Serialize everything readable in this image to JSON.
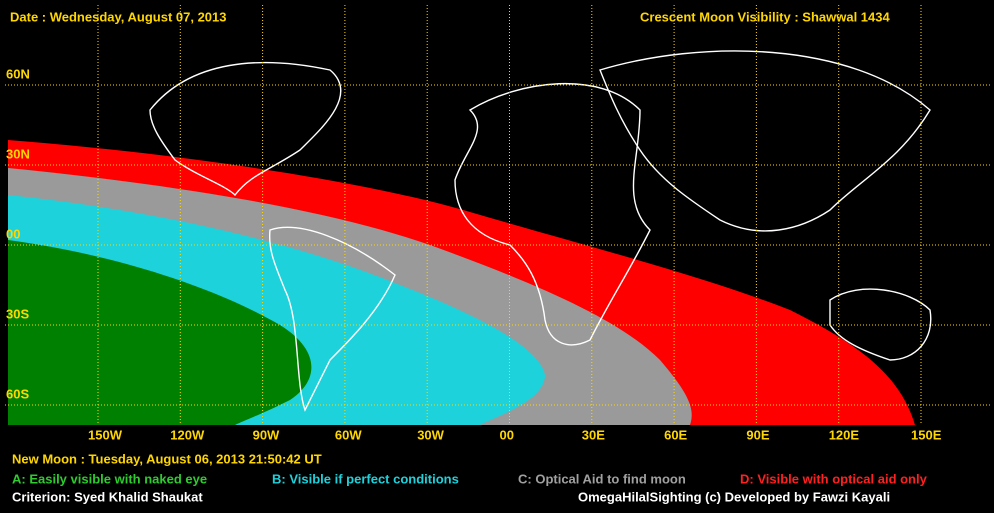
{
  "header": {
    "date": "Date : Wednesday, August 07, 2013",
    "title": "Crescent Moon Visibility : Shawwal  1434"
  },
  "map": {
    "lat_labels": [
      "60N",
      "30N",
      "00",
      "30S",
      "60S"
    ],
    "lon_labels": [
      "150W",
      "120W",
      "90W",
      "60W",
      "30W",
      "00",
      "30E",
      "60E",
      "90E",
      "120E",
      "150E"
    ]
  },
  "footer": {
    "new_moon": "New Moon : Tuesday, August 06, 2013  21:50:42  UT",
    "criterion": "Criterion: Syed Khalid Shaukat",
    "credit": "OmegaHilalSighting  (c)  Developed by Fawzi Kayali"
  },
  "legend": [
    "A: Easily visible with naked eye",
    "B: Visible if perfect conditions",
    "C: Optical Aid to find moon",
    "D: Visible with optical aid only"
  ]
}
